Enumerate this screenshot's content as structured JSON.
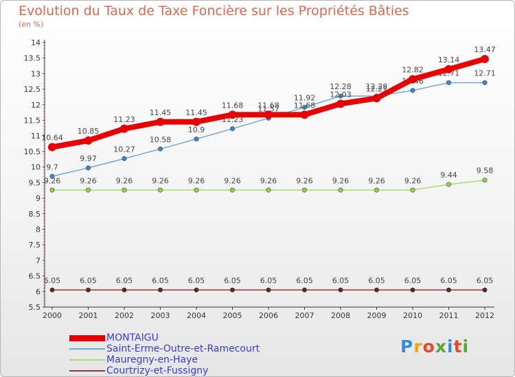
{
  "header": {
    "title": "Evolution du Taux de Taxe Foncière sur les Propriétés Bâties",
    "unit": "(en %)"
  },
  "logo": {
    "text": "Proxiti",
    "letter_colors": [
      "#2f8fd8",
      "#f0a21a",
      "#e9442e",
      "#5aa832",
      "#2f8fd8",
      "#e9442e",
      "#5aa832"
    ]
  },
  "chart_data": {
    "type": "line",
    "title": "Evolution du Taux de Taxe Foncière sur les Propriétés Bâties",
    "ylabel": "(en %)",
    "xlabel": "",
    "x": [
      "2000",
      "2001",
      "2002",
      "2003",
      "2004",
      "2005",
      "2006",
      "2007",
      "2008",
      "2009",
      "2010",
      "2011",
      "2012"
    ],
    "ylim": [
      5.5,
      14
    ],
    "yticks": [
      "5.5",
      "6",
      "6.5",
      "7",
      "7.5",
      "8",
      "8.5",
      "9",
      "9.5",
      "10",
      "10.5",
      "11",
      "11.5",
      "12",
      "12.5",
      "13",
      "13.5",
      "14"
    ],
    "grid": false,
    "legend_position": "bottom-left",
    "series": [
      {
        "name": "MONTAIGU",
        "color": "#e60000",
        "marker_color": "#e60000",
        "values": [
          10.64,
          10.85,
          11.23,
          11.45,
          11.45,
          11.68,
          11.68,
          11.68,
          12.03,
          12.21,
          12.82,
          13.14,
          13.47
        ],
        "labels": [
          "10.64",
          "10.85",
          "11.23",
          "11.45",
          "11.45",
          "11.68",
          "11.68",
          "11.68",
          "12.03",
          "12.21",
          "12.82",
          "13.14",
          "13.47"
        ]
      },
      {
        "name": "Saint-Erme-Outre-et-Ramecourt",
        "color": "#6fa8dc",
        "marker_color": "#3d85c6",
        "values": [
          9.7,
          9.97,
          10.27,
          10.58,
          10.9,
          11.23,
          11.57,
          11.92,
          12.28,
          12.28,
          12.46,
          12.71,
          12.71
        ],
        "labels": [
          "9.7",
          "9.97",
          "10.27",
          "10.58",
          "10.9",
          "11.23",
          "11.57",
          "11.92",
          "12.28",
          "12.28",
          "12.46",
          "12.71",
          "12.71"
        ]
      },
      {
        "name": "Mauregny-en-Haye",
        "color": "#a8db6f",
        "marker_color": "#8fd14f",
        "values": [
          9.26,
          9.26,
          9.26,
          9.26,
          9.26,
          9.26,
          9.26,
          9.26,
          9.26,
          9.26,
          9.26,
          9.44,
          9.58
        ],
        "labels": [
          "9.26",
          "9.26",
          "9.26",
          "9.26",
          "9.26",
          "9.26",
          "9.26",
          "9.26",
          "9.26",
          "9.26",
          "9.26",
          "9.44",
          "9.58"
        ]
      },
      {
        "name": "Courtrizy-et-Fussigny",
        "color": "#8b3a3a",
        "marker_color": "#6b2020",
        "values": [
          6.05,
          6.05,
          6.05,
          6.05,
          6.05,
          6.05,
          6.05,
          6.05,
          6.05,
          6.05,
          6.05,
          6.05,
          6.05
        ],
        "labels": [
          "6.05",
          "6.05",
          "6.05",
          "6.05",
          "6.05",
          "6.05",
          "6.05",
          "6.05",
          "6.05",
          "6.05",
          "6.05",
          "6.05",
          "6.05"
        ]
      }
    ]
  }
}
